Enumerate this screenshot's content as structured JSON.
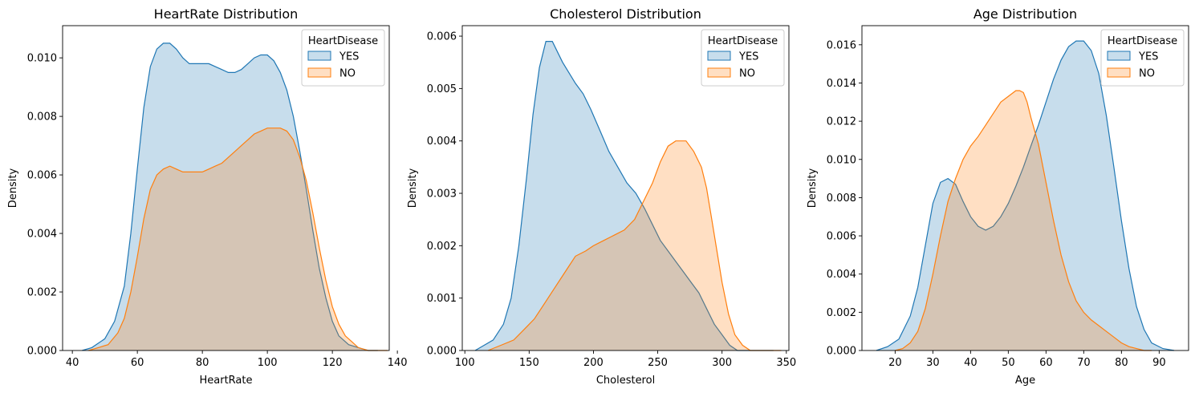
{
  "colors": {
    "yes_line": "#1f77b4",
    "yes_fill": "#1f77b4",
    "no_line": "#ff7f0e",
    "no_fill": "#ff7f0e"
  },
  "chart_data": [
    {
      "type": "area",
      "title": "HeartRate Distribution",
      "xlabel": "HeartRate",
      "ylabel": "Density",
      "xlim": [
        37,
        137.5
      ],
      "ylim": [
        0,
        0.0111
      ],
      "xticks": [
        40,
        60,
        80,
        100,
        120,
        140
      ],
      "xtick_labels": [
        "40",
        "60",
        "80",
        "100",
        "120",
        "140"
      ],
      "yticks": [
        0,
        0.002,
        0.004,
        0.006,
        0.008,
        0.01
      ],
      "ytick_labels": [
        "0.000",
        "0.002",
        "0.004",
        "0.006",
        "0.008",
        "0.010"
      ],
      "grid": false,
      "legend": {
        "title": "HeartDisease",
        "position": "top-right",
        "entries": [
          "YES",
          "NO"
        ]
      },
      "series": [
        {
          "name": "YES",
          "x": [
            43,
            46,
            50,
            53,
            56,
            58,
            60,
            62,
            64,
            66,
            68,
            70,
            72,
            74,
            76,
            78,
            80,
            82,
            84,
            86,
            88,
            90,
            92,
            94,
            96,
            98,
            100,
            102,
            104,
            106,
            108,
            110,
            112,
            114,
            116,
            118,
            120,
            122,
            125,
            128,
            131,
            134
          ],
          "y": [
            0.0,
            0.0001,
            0.0004,
            0.001,
            0.0022,
            0.004,
            0.0062,
            0.0083,
            0.0097,
            0.0103,
            0.0105,
            0.0105,
            0.0103,
            0.01,
            0.0098,
            0.0098,
            0.0098,
            0.0098,
            0.0097,
            0.0096,
            0.0095,
            0.0095,
            0.0096,
            0.0098,
            0.01,
            0.0101,
            0.0101,
            0.0099,
            0.0095,
            0.0089,
            0.008,
            0.0068,
            0.0055,
            0.0041,
            0.0028,
            0.0018,
            0.001,
            0.0005,
            0.0002,
            0.0001,
            0.0,
            0.0
          ]
        },
        {
          "name": "NO",
          "x": [
            45,
            48,
            51,
            54,
            56,
            58,
            60,
            62,
            64,
            66,
            68,
            70,
            72,
            74,
            76,
            78,
            80,
            82,
            84,
            86,
            88,
            90,
            92,
            94,
            96,
            98,
            100,
            102,
            104,
            106,
            108,
            110,
            112,
            114,
            116,
            118,
            120,
            122,
            124,
            126,
            128,
            131,
            134,
            137
          ],
          "y": [
            0.0,
            0.0001,
            0.0002,
            0.0006,
            0.0011,
            0.002,
            0.0032,
            0.0045,
            0.0055,
            0.006,
            0.0062,
            0.0063,
            0.0062,
            0.0061,
            0.0061,
            0.0061,
            0.0061,
            0.0062,
            0.0063,
            0.0064,
            0.0066,
            0.0068,
            0.007,
            0.0072,
            0.0074,
            0.0075,
            0.0076,
            0.0076,
            0.0076,
            0.0075,
            0.0072,
            0.0066,
            0.0058,
            0.0047,
            0.0035,
            0.0024,
            0.0015,
            0.0009,
            0.0005,
            0.0003,
            0.0001,
            0.0,
            0.0,
            0.0
          ]
        }
      ]
    },
    {
      "type": "area",
      "title": "Cholesterol Distribution",
      "xlabel": "Cholesterol",
      "ylabel": "Density",
      "xlim": [
        98,
        352
      ],
      "ylim": [
        0,
        0.0062
      ],
      "xticks": [
        100,
        150,
        200,
        250,
        300,
        350
      ],
      "xtick_labels": [
        "100",
        "150",
        "200",
        "250",
        "300",
        "350"
      ],
      "yticks": [
        0,
        0.001,
        0.002,
        0.003,
        0.004,
        0.005,
        0.006
      ],
      "ytick_labels": [
        "0.000",
        "0.001",
        "0.002",
        "0.003",
        "0.004",
        "0.005",
        "0.006"
      ],
      "grid": false,
      "legend": {
        "title": "HeartDisease",
        "position": "top-right",
        "entries": [
          "YES",
          "NO"
        ]
      },
      "series": [
        {
          "name": "YES",
          "x": [
            108,
            115,
            122,
            130,
            136,
            142,
            148,
            153,
            158,
            163,
            168,
            172,
            176,
            181,
            186,
            192,
            198,
            205,
            212,
            219,
            226,
            233,
            240,
            246,
            252,
            258,
            264,
            270,
            276,
            282,
            288,
            294,
            300,
            306,
            312,
            320,
            330,
            340
          ],
          "y": [
            0.0,
            0.0001,
            0.0002,
            0.0005,
            0.001,
            0.002,
            0.0033,
            0.0045,
            0.0054,
            0.0059,
            0.0059,
            0.0057,
            0.0055,
            0.0053,
            0.0051,
            0.0049,
            0.0046,
            0.0042,
            0.0038,
            0.0035,
            0.0032,
            0.003,
            0.0027,
            0.0024,
            0.0021,
            0.0019,
            0.0017,
            0.0015,
            0.0013,
            0.0011,
            0.0008,
            0.0005,
            0.0003,
            0.0001,
            0.0,
            0.0,
            0.0,
            0.0
          ]
        },
        {
          "name": "NO",
          "x": [
            118,
            128,
            138,
            146,
            154,
            162,
            170,
            178,
            186,
            194,
            200,
            208,
            216,
            224,
            232,
            240,
            246,
            252,
            258,
            264,
            268,
            272,
            278,
            284,
            288,
            292,
            296,
            300,
            305,
            310,
            316,
            322,
            330,
            338,
            346
          ],
          "y": [
            0.0,
            0.0001,
            0.0002,
            0.0004,
            0.0006,
            0.0009,
            0.0012,
            0.0015,
            0.0018,
            0.0019,
            0.002,
            0.0021,
            0.0022,
            0.0023,
            0.0025,
            0.0029,
            0.0032,
            0.0036,
            0.0039,
            0.004,
            0.004,
            0.004,
            0.0038,
            0.0035,
            0.0031,
            0.0025,
            0.0019,
            0.0013,
            0.0007,
            0.0003,
            0.0001,
            0.0,
            0.0,
            0.0,
            0.0
          ]
        }
      ]
    },
    {
      "type": "area",
      "title": "Age Distribution",
      "xlabel": "Age",
      "ylabel": "Density",
      "xlim": [
        11.2,
        97.8
      ],
      "ylim": [
        0,
        0.017
      ],
      "xticks": [
        20,
        30,
        40,
        50,
        60,
        70,
        80,
        90
      ],
      "xtick_labels": [
        "20",
        "30",
        "40",
        "50",
        "60",
        "70",
        "80",
        "90"
      ],
      "yticks": [
        0,
        0.002,
        0.004,
        0.006,
        0.008,
        0.01,
        0.012,
        0.014,
        0.016
      ],
      "ytick_labels": [
        "0.000",
        "0.002",
        "0.004",
        "0.006",
        "0.008",
        "0.010",
        "0.012",
        "0.014",
        "0.016"
      ],
      "grid": false,
      "legend": {
        "title": "HeartDisease",
        "position": "top-right",
        "entries": [
          "YES",
          "NO"
        ]
      },
      "series": [
        {
          "name": "YES",
          "x": [
            15,
            18,
            21,
            24,
            26,
            28,
            30,
            32,
            34,
            36,
            38,
            40,
            42,
            44,
            46,
            48,
            50,
            52,
            54,
            56,
            58,
            60,
            62,
            64,
            66,
            68,
            70,
            72,
            74,
            76,
            78,
            80,
            82,
            84,
            86,
            88,
            91,
            94
          ],
          "y": [
            0.0,
            0.0002,
            0.0006,
            0.0018,
            0.0033,
            0.0055,
            0.0077,
            0.0088,
            0.009,
            0.0087,
            0.0078,
            0.007,
            0.0065,
            0.0063,
            0.0065,
            0.007,
            0.0077,
            0.0086,
            0.0096,
            0.0107,
            0.0118,
            0.013,
            0.0142,
            0.0152,
            0.0159,
            0.0162,
            0.0162,
            0.0157,
            0.0145,
            0.0123,
            0.0096,
            0.0068,
            0.0043,
            0.0023,
            0.0011,
            0.0004,
            0.0001,
            0.0
          ]
        },
        {
          "name": "NO",
          "x": [
            20,
            22,
            24,
            26,
            28,
            30,
            32,
            34,
            36,
            38,
            40,
            42,
            44,
            46,
            48,
            50,
            52,
            53,
            54,
            55,
            56,
            58,
            60,
            62,
            64,
            66,
            68,
            70,
            72,
            74,
            76,
            78,
            80,
            82,
            84,
            86,
            88
          ],
          "y": [
            0.0,
            0.0001,
            0.0004,
            0.001,
            0.0022,
            0.004,
            0.006,
            0.0078,
            0.009,
            0.01,
            0.0107,
            0.0112,
            0.0118,
            0.0124,
            0.013,
            0.0133,
            0.0136,
            0.0136,
            0.0135,
            0.013,
            0.0122,
            0.0108,
            0.0088,
            0.0068,
            0.005,
            0.0036,
            0.0026,
            0.002,
            0.0016,
            0.0013,
            0.001,
            0.0007,
            0.0004,
            0.0002,
            0.0001,
            0.0,
            0.0
          ]
        }
      ]
    }
  ]
}
